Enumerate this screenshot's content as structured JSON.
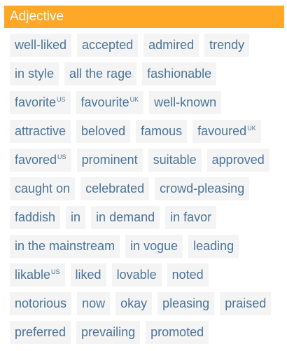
{
  "header": {
    "title": "Adjective"
  },
  "rows": [
    [
      {
        "label": "well-liked"
      },
      {
        "label": "accepted"
      },
      {
        "label": "admired"
      },
      {
        "label": "trendy"
      }
    ],
    [
      {
        "label": "in style"
      },
      {
        "label": "all the rage"
      },
      {
        "label": "fashionable"
      }
    ],
    [
      {
        "label": "favorite",
        "sup": "US"
      },
      {
        "label": "favourite",
        "sup": "UK"
      },
      {
        "label": "well-known"
      }
    ],
    [
      {
        "label": "attractive"
      },
      {
        "label": "beloved"
      },
      {
        "label": "famous"
      },
      {
        "label": "favoured",
        "sup": "UK"
      }
    ],
    [
      {
        "label": "favored",
        "sup": "US"
      },
      {
        "label": "prominent"
      },
      {
        "label": "suitable"
      },
      {
        "label": "approved"
      }
    ],
    [
      {
        "label": "caught on"
      },
      {
        "label": "celebrated"
      },
      {
        "label": "crowd-pleasing"
      }
    ],
    [
      {
        "label": "faddish"
      },
      {
        "label": "in"
      },
      {
        "label": "in demand"
      },
      {
        "label": "in favor"
      }
    ],
    [
      {
        "label": "in the mainstream"
      },
      {
        "label": "in vogue"
      },
      {
        "label": "leading"
      }
    ],
    [
      {
        "label": "likable",
        "sup": "US"
      },
      {
        "label": "liked"
      },
      {
        "label": "lovable"
      },
      {
        "label": "noted"
      }
    ],
    [
      {
        "label": "notorious"
      },
      {
        "label": "now"
      },
      {
        "label": "okay"
      },
      {
        "label": "pleasing"
      },
      {
        "label": "praised"
      }
    ],
    [
      {
        "label": "preferred"
      },
      {
        "label": "prevailing"
      },
      {
        "label": "promoted"
      }
    ]
  ]
}
